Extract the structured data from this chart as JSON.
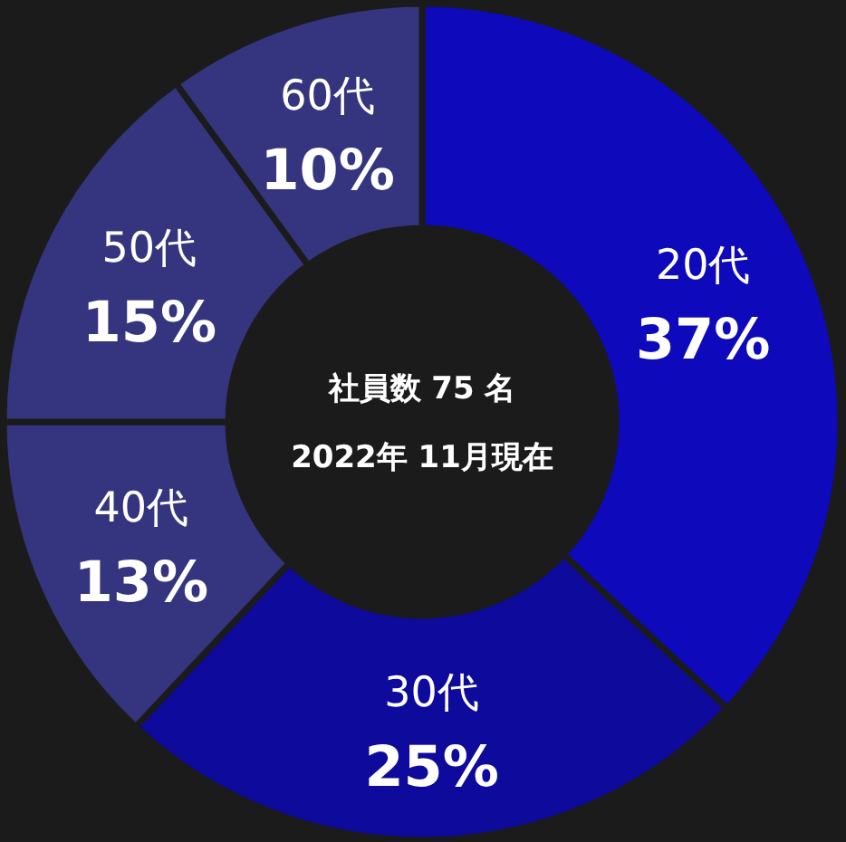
{
  "chart_data": {
    "type": "donut",
    "categories": [
      "20代",
      "30代",
      "40代",
      "50代",
      "60代"
    ],
    "values": [
      37,
      25,
      13,
      15,
      10
    ],
    "colors": [
      "#0e0abb",
      "#0d0a9c",
      "#35357f",
      "#35357f",
      "#35357f"
    ],
    "value_labels": [
      "37%",
      "25%",
      "13%",
      "15%",
      "10%"
    ],
    "annotations": [
      "社員数 75 名",
      "2022年 11月現在"
    ]
  }
}
